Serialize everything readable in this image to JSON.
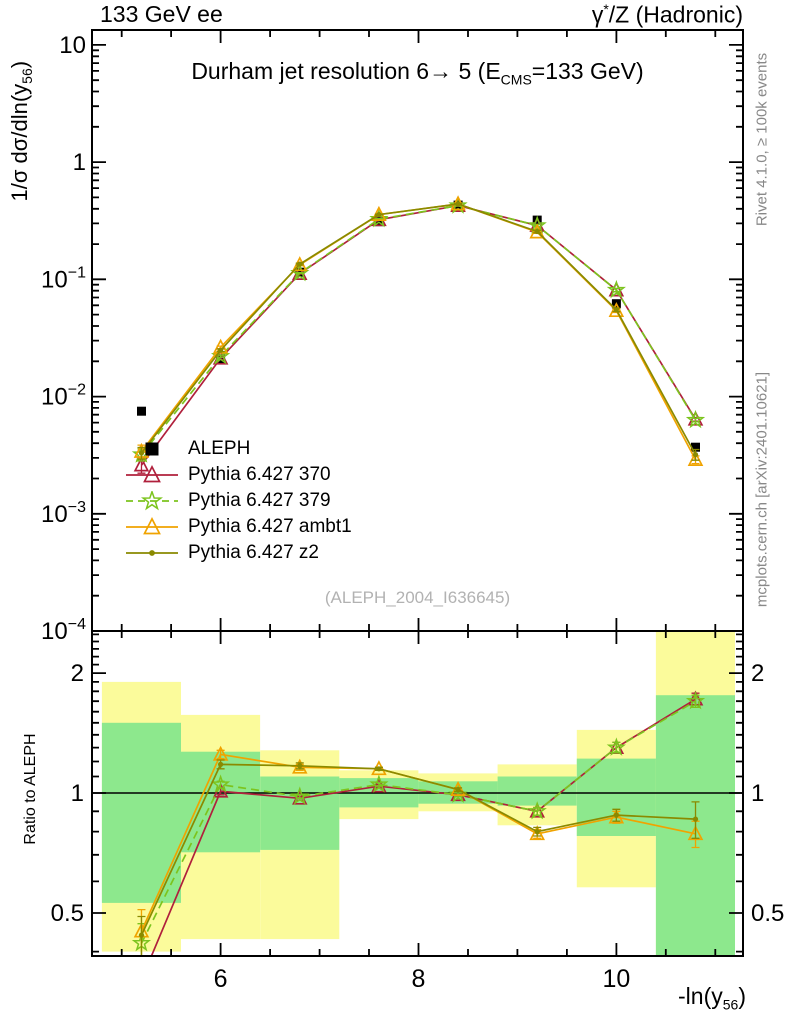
{
  "header": {
    "left": "133 GeV ee",
    "right_parts": {
      "pre": "γ",
      "sup": "*",
      "post": "/Z (Hadronic)"
    }
  },
  "main_panel": {
    "title_parts": {
      "pre": "Durham jet resolution 6→ 5 (E",
      "sub": "CMS",
      "post": "=133 GeV)"
    },
    "ylabel_parts": {
      "pre": "1/σ  dσ/dln(y",
      "sub": "56",
      "post": ")"
    },
    "watermark": "(ALEPH_2004_I636645)"
  },
  "ratio_panel": {
    "ylabel": "Ratio to ALEPH"
  },
  "xaxis": {
    "label_parts": {
      "pre": "-ln(y",
      "sub": "56",
      "post": ")"
    }
  },
  "side_notes": {
    "top": "Rivet 4.1.0, ≥ 100k events",
    "bottom": "mcplots.cern.ch [arXiv:2401.10621]"
  },
  "colors": {
    "aleph": "#000000",
    "p370": "#b0203c",
    "p379": "#7cc41e",
    "ambt1": "#f0a300",
    "z2": "#8a8a00",
    "band_yellow": "#fbfb9b",
    "band_green": "#8de88d",
    "frame": "#000000",
    "gray_note": "#888888",
    "watermark_gray": "#b2b2b2"
  },
  "chart_data": {
    "type": "line",
    "title": "Durham jet resolution 6-> 5 (E_CMS=133 GeV)",
    "xlabel": "-ln(y_56)",
    "ylabel": "1/sigma dsigma/dln(y_56)",
    "ylabel_ratio": "Ratio to ALEPH",
    "grid": false,
    "legend_position": "inside-left",
    "xlim": [
      4.7,
      11.28
    ],
    "ylim_main": [
      0.0001,
      13.4
    ],
    "ylim_ratio": [
      0.39,
      2.55
    ],
    "x": [
      5.2,
      6.0,
      6.8,
      7.6,
      8.4,
      9.2,
      10.0,
      10.8
    ],
    "bin_half_width": 0.4,
    "series": [
      {
        "name": "ALEPH",
        "color": "#000000",
        "marker": "square",
        "line": "none",
        "values": [
          0.0075,
          0.021,
          0.115,
          0.31,
          0.43,
          0.32,
          0.062,
          0.0037
        ]
      },
      {
        "name": "Pythia 6.427 370",
        "color": "#b0203c",
        "marker": "triangle",
        "line": "solid",
        "values": [
          0.0026,
          0.0212,
          0.112,
          0.322,
          0.426,
          0.288,
          0.081,
          0.0064
        ],
        "ratio": [
          0.34,
          1.01,
          0.97,
          1.04,
          0.99,
          0.9,
          1.3,
          1.72
        ],
        "ratio_err": [
          0.05,
          0.02,
          0.01,
          0.01,
          0.01,
          0.02,
          0.04,
          0.06
        ]
      },
      {
        "name": "Pythia 6.427 379",
        "color": "#7cc41e",
        "marker": "star",
        "line": "dashed",
        "values": [
          0.0032,
          0.0221,
          0.113,
          0.326,
          0.426,
          0.288,
          0.081,
          0.0063
        ],
        "ratio": [
          0.42,
          1.05,
          0.98,
          1.05,
          0.99,
          0.9,
          1.3,
          1.7
        ],
        "ratio_err": [
          0.05,
          0.02,
          0.01,
          0.01,
          0.01,
          0.02,
          0.04,
          0.06
        ]
      },
      {
        "name": "Pythia 6.427 ambt1",
        "color": "#f0a300",
        "marker": "triangle",
        "line": "solid",
        "values": [
          0.0034,
          0.0263,
          0.133,
          0.357,
          0.439,
          0.253,
          0.054,
          0.0029
        ],
        "ratio": [
          0.45,
          1.25,
          1.16,
          1.15,
          1.02,
          0.79,
          0.87,
          0.79
        ],
        "ratio_err": [
          0.06,
          0.03,
          0.02,
          0.01,
          0.01,
          0.02,
          0.03,
          0.06
        ]
      },
      {
        "name": "Pythia 6.427 z2",
        "color": "#8a8a00",
        "marker": "dot",
        "line": "solid",
        "values": [
          0.0033,
          0.0248,
          0.135,
          0.357,
          0.439,
          0.256,
          0.055,
          0.0032
        ],
        "ratio": [
          0.44,
          1.18,
          1.17,
          1.15,
          1.02,
          0.8,
          0.88,
          0.86
        ],
        "ratio_err": [
          0.05,
          0.03,
          0.02,
          0.01,
          0.01,
          0.02,
          0.03,
          0.09
        ]
      }
    ],
    "bands": {
      "yellow": {
        "color": "#fbfb9b",
        "ranges": [
          [
            0.4,
            1.9
          ],
          [
            0.43,
            1.57
          ],
          [
            0.43,
            1.28
          ],
          [
            0.86,
            1.14
          ],
          [
            0.9,
            1.12
          ],
          [
            0.83,
            1.18
          ],
          [
            0.58,
            1.44
          ],
          [
            0.38,
            2.56
          ]
        ]
      },
      "green": {
        "color": "#8de88d",
        "ranges": [
          [
            0.53,
            1.5
          ],
          [
            0.71,
            1.27
          ],
          [
            0.72,
            1.1
          ],
          [
            0.92,
            1.09
          ],
          [
            0.94,
            1.07
          ],
          [
            0.93,
            1.1
          ],
          [
            0.78,
            1.22
          ],
          [
            0.38,
            1.76
          ]
        ]
      }
    },
    "xticks": {
      "major": [
        6,
        8,
        10
      ],
      "minor_start": 5.0,
      "minor_end": 11.0,
      "minor_step": 0.5
    },
    "yticks_main": [
      {
        "v": 10,
        "base": "10",
        "exp": ""
      },
      {
        "v": 1,
        "base": "1",
        "exp": ""
      },
      {
        "v": 0.1,
        "base": "10",
        "exp": "−1"
      },
      {
        "v": 0.01,
        "base": "10",
        "exp": "−2"
      },
      {
        "v": 0.001,
        "base": "10",
        "exp": "−3"
      },
      {
        "v": 0.0001,
        "base": "10",
        "exp": "−4"
      }
    ],
    "yticks_ratio": [
      {
        "v": 2,
        "label": "2"
      },
      {
        "v": 1,
        "label": "1"
      },
      {
        "v": 0.5,
        "label": "0.5"
      }
    ]
  }
}
